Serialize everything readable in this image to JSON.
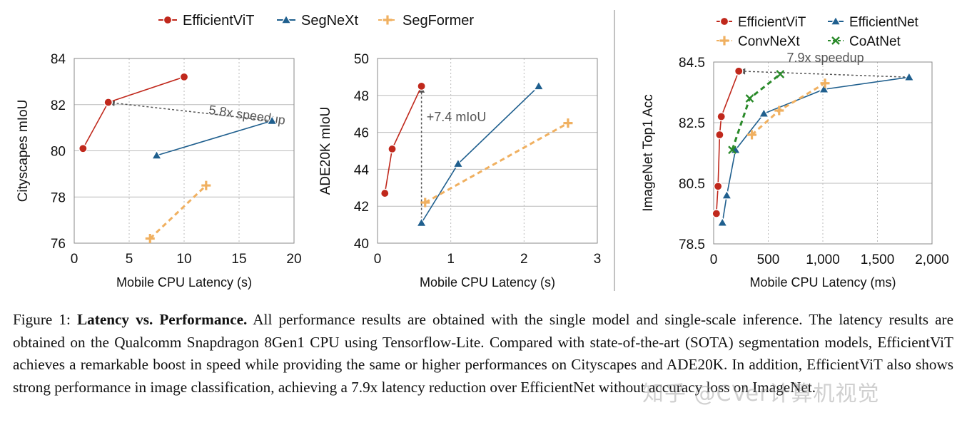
{
  "colors": {
    "efficientvit": "#c0281c",
    "segnext": "#1f5f8e",
    "segformer": "#f0b060",
    "efficientnet": "#1f5f8e",
    "convnext": "#f0b060",
    "coatnet": "#2a8a2a",
    "grid": "#bbbbbb",
    "annotation": "#555555"
  },
  "top_legend": {
    "items": [
      {
        "label": "EfficientViT",
        "marker": "circle",
        "color_key": "efficientvit"
      },
      {
        "label": "SegNeXt",
        "marker": "triangle",
        "color_key": "segnext"
      },
      {
        "label": "SegFormer",
        "marker": "plus",
        "color_key": "segformer"
      }
    ]
  },
  "chart_data": [
    {
      "type": "line",
      "title": "",
      "xlabel": "Mobile CPU Latency (s)",
      "ylabel": "Cityscapes mIoU",
      "xlim": [
        0,
        20
      ],
      "ylim": [
        76,
        84
      ],
      "xticks": [
        0,
        5,
        10,
        15,
        20
      ],
      "yticks": [
        76,
        78,
        80,
        82,
        84
      ],
      "grid": true,
      "series": [
        {
          "name": "EfficientViT",
          "marker": "circle",
          "style": "solid",
          "color_key": "efficientvit",
          "points": [
            [
              0.8,
              80.1
            ],
            [
              3.1,
              82.1
            ],
            [
              10.0,
              83.2
            ]
          ]
        },
        {
          "name": "SegNeXt",
          "marker": "triangle",
          "style": "solid",
          "color_key": "segnext",
          "points": [
            [
              7.5,
              79.8
            ],
            [
              18.0,
              81.3
            ]
          ]
        },
        {
          "name": "SegFormer",
          "marker": "plus",
          "style": "dashed",
          "color_key": "segformer",
          "points": [
            [
              6.9,
              76.2
            ],
            [
              12.0,
              78.5
            ]
          ]
        }
      ],
      "annotations": [
        {
          "text": "5.8x speedup",
          "kind": "arrow",
          "from": [
            18.0,
            81.3
          ],
          "to": [
            3.1,
            82.1
          ],
          "label_at": [
            12.2,
            81.6
          ],
          "rotate": 8
        }
      ]
    },
    {
      "type": "line",
      "title": "",
      "xlabel": "Mobile CPU Latency (s)",
      "ylabel": "ADE20K mIoU",
      "xlim": [
        0,
        3
      ],
      "ylim": [
        40,
        50
      ],
      "xticks": [
        0,
        1,
        2,
        3
      ],
      "yticks": [
        40,
        42,
        44,
        46,
        48,
        50
      ],
      "grid": true,
      "series": [
        {
          "name": "EfficientViT",
          "marker": "circle",
          "style": "solid",
          "color_key": "efficientvit",
          "points": [
            [
              0.1,
              42.7
            ],
            [
              0.2,
              45.1
            ],
            [
              0.6,
              48.5
            ]
          ]
        },
        {
          "name": "SegNeXt",
          "marker": "triangle",
          "style": "solid",
          "color_key": "segnext",
          "points": [
            [
              0.6,
              41.1
            ],
            [
              1.1,
              44.3
            ],
            [
              2.2,
              48.5
            ]
          ]
        },
        {
          "name": "SegFormer",
          "marker": "plus",
          "style": "dashed",
          "color_key": "segformer",
          "points": [
            [
              0.65,
              42.2
            ],
            [
              2.6,
              46.5
            ]
          ]
        }
      ],
      "annotations": [
        {
          "text": "+7.4 mIoU",
          "kind": "arrow",
          "from": [
            0.6,
            41.1
          ],
          "to": [
            0.6,
            48.5
          ],
          "label_at": [
            0.67,
            46.6
          ],
          "rotate": 0
        }
      ]
    },
    {
      "type": "line",
      "title": "",
      "xlabel": "Mobile CPU Latency (ms)",
      "ylabel": "ImageNet Top1 Acc",
      "xlim": [
        0,
        2000
      ],
      "ylim": [
        78.5,
        84.5
      ],
      "xticks": [
        0,
        500,
        1000,
        1500,
        2000
      ],
      "xtick_labels": [
        "0",
        "500",
        "1,000",
        "1,500",
        "2,000"
      ],
      "yticks": [
        78.5,
        80.5,
        82.5,
        84.5
      ],
      "grid": true,
      "series": [
        {
          "name": "EfficientViT",
          "marker": "circle",
          "style": "solid",
          "color_key": "efficientvit",
          "points": [
            [
              25,
              79.5
            ],
            [
              40,
              80.4
            ],
            [
              55,
              82.1
            ],
            [
              70,
              82.7
            ],
            [
              230,
              84.2
            ]
          ]
        },
        {
          "name": "EfficientNet",
          "marker": "triangle",
          "style": "solid",
          "color_key": "efficientnet",
          "points": [
            [
              80,
              79.2
            ],
            [
              120,
              80.1
            ],
            [
              200,
              81.6
            ],
            [
              460,
              82.8
            ],
            [
              1010,
              83.6
            ],
            [
              1790,
              84.0
            ]
          ]
        },
        {
          "name": "ConvNeXt",
          "marker": "plus",
          "style": "dashed",
          "color_key": "convnext",
          "points": [
            [
              350,
              82.1
            ],
            [
              600,
              82.9
            ],
            [
              1020,
              83.8
            ]
          ]
        },
        {
          "name": "CoAtNet",
          "marker": "x",
          "style": "dashed",
          "color_key": "coatnet",
          "points": [
            [
              170,
              81.6
            ],
            [
              330,
              83.3
            ],
            [
              610,
              84.1
            ]
          ]
        }
      ],
      "annotations": [
        {
          "text": "7.9x speedup",
          "kind": "arrow",
          "from": [
            1790,
            84.0
          ],
          "to": [
            230,
            84.2
          ],
          "label_at": [
            670,
            84.5
          ],
          "rotate": 0
        }
      ],
      "legend": {
        "placement": "top",
        "items": [
          {
            "label": "EfficientViT",
            "marker": "circle",
            "color_key": "efficientvit"
          },
          {
            "label": "EfficientNet",
            "marker": "triangle",
            "color_key": "efficientnet"
          },
          {
            "label": "ConvNeXt",
            "marker": "plus",
            "color_key": "convnext"
          },
          {
            "label": "CoAtNet",
            "marker": "x",
            "color_key": "coatnet"
          }
        ]
      }
    }
  ],
  "caption": {
    "label": "Figure 1: ",
    "title": "Latency vs. Performance.",
    "text": " All performance results are obtained with the single model and single-scale inference. The latency results are obtained on the Qualcomm Snapdragon 8Gen1 CPU using Tensorflow-Lite. Compared with state-of-the-art (SOTA) segmentation models, EfficientViT achieves a remarkable boost in speed while providing the same or higher performances on Cityscapes and ADE20K. In addition, EfficientViT also shows strong performance in image classification, achieving a 7.9x latency reduction over EfficientNet without accuracy loss on ImageNet."
  },
  "watermark": "知乎 @CVer计算机视觉"
}
